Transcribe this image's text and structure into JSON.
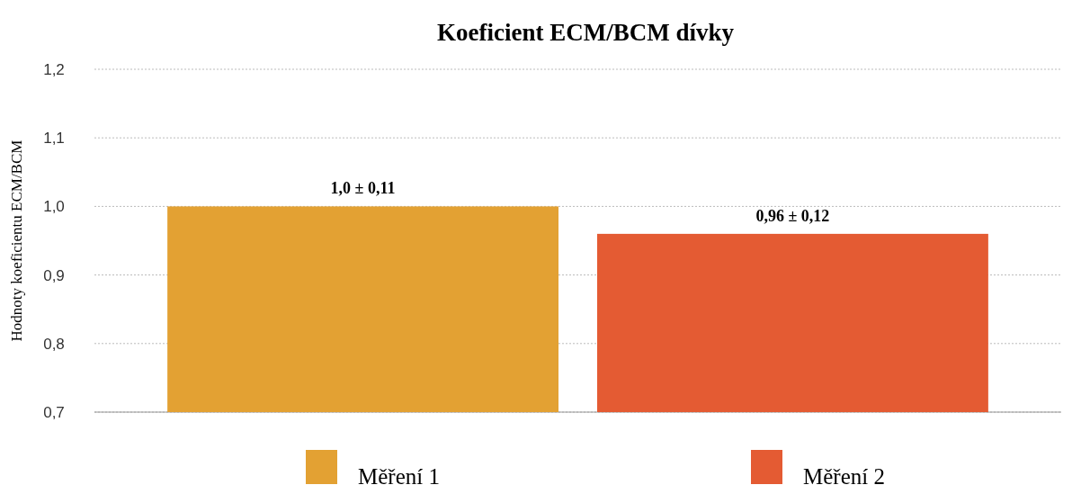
{
  "chart_data": {
    "type": "bar",
    "title": "Koeficient ECM/BCM dívky",
    "ylabel": "Hodnoty koeficientu ECM/BCM",
    "categories": [
      null
    ],
    "series": [
      {
        "name": "Měření 1",
        "color": "#e3a133",
        "values": [
          1.0
        ],
        "value_labels": [
          "1,0 ± 0,11"
        ]
      },
      {
        "name": "Měření 2",
        "color": "#e45b33",
        "values": [
          0.96
        ],
        "value_labels": [
          "0,96 ± 0,12"
        ]
      }
    ],
    "ylim": [
      0.7,
      1.2
    ],
    "yticks": [
      {
        "value": 0.7,
        "label": "0,7"
      },
      {
        "value": 0.8,
        "label": "0,8"
      },
      {
        "value": 0.9,
        "label": "0,9"
      },
      {
        "value": 1.0,
        "label": "1,0"
      },
      {
        "value": 1.1,
        "label": "1,1"
      },
      {
        "value": 1.2,
        "label": "1,2"
      }
    ],
    "grid": "y",
    "legend": "bottom"
  }
}
